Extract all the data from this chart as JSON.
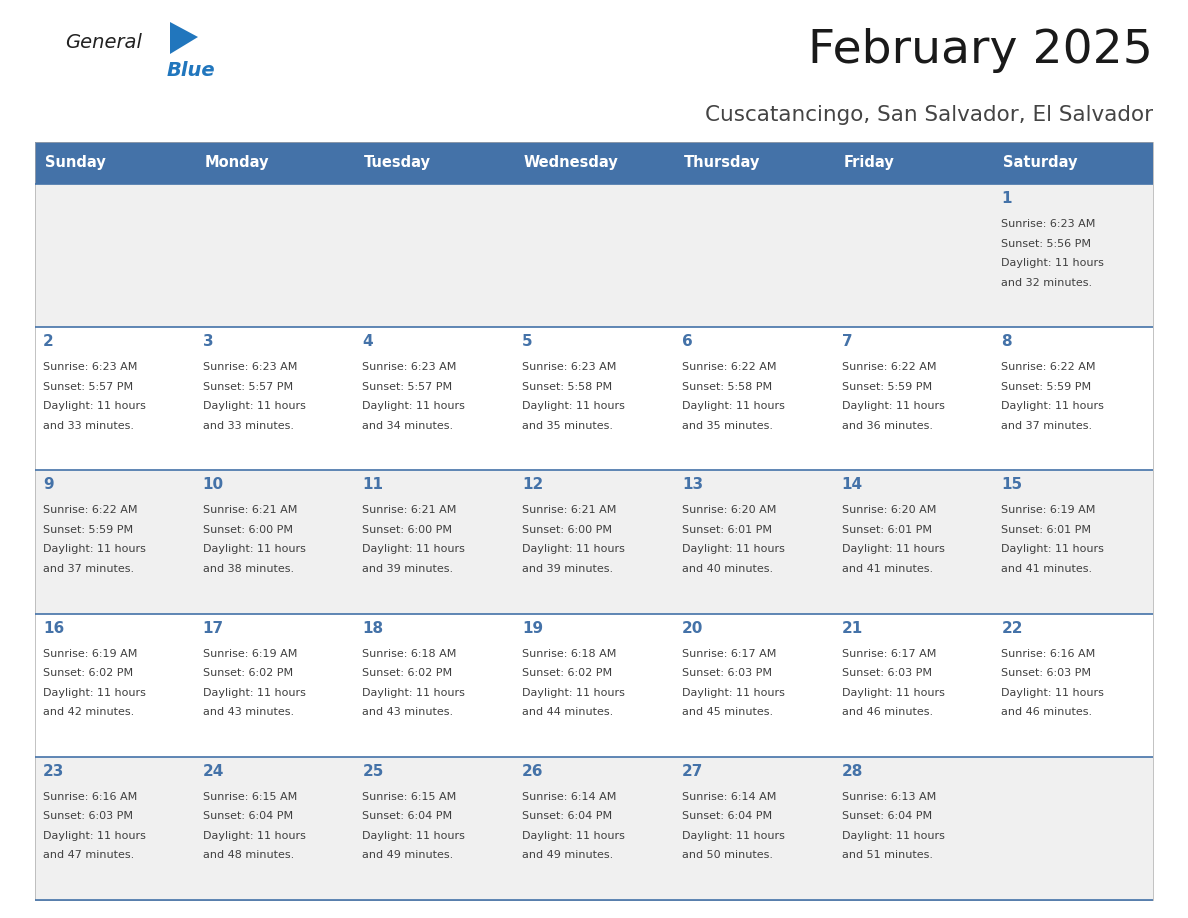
{
  "title": "February 2025",
  "subtitle": "Cuscatancingo, San Salvador, El Salvador",
  "days_of_week": [
    "Sunday",
    "Monday",
    "Tuesday",
    "Wednesday",
    "Thursday",
    "Friday",
    "Saturday"
  ],
  "header_bg": "#4472a8",
  "header_text": "#ffffff",
  "row_bg_odd": "#f0f0f0",
  "row_bg_even": "#ffffff",
  "border_color": "#4472a8",
  "day_number_color": "#4472a8",
  "text_color": "#404040",
  "calendar": [
    [
      null,
      null,
      null,
      null,
      null,
      null,
      {
        "day": 1,
        "sunrise": "6:23 AM",
        "sunset": "5:56 PM",
        "daylight": "11 hours",
        "daylight2": "and 32 minutes."
      }
    ],
    [
      {
        "day": 2,
        "sunrise": "6:23 AM",
        "sunset": "5:57 PM",
        "daylight": "11 hours",
        "daylight2": "and 33 minutes."
      },
      {
        "day": 3,
        "sunrise": "6:23 AM",
        "sunset": "5:57 PM",
        "daylight": "11 hours",
        "daylight2": "and 33 minutes."
      },
      {
        "day": 4,
        "sunrise": "6:23 AM",
        "sunset": "5:57 PM",
        "daylight": "11 hours",
        "daylight2": "and 34 minutes."
      },
      {
        "day": 5,
        "sunrise": "6:23 AM",
        "sunset": "5:58 PM",
        "daylight": "11 hours",
        "daylight2": "and 35 minutes."
      },
      {
        "day": 6,
        "sunrise": "6:22 AM",
        "sunset": "5:58 PM",
        "daylight": "11 hours",
        "daylight2": "and 35 minutes."
      },
      {
        "day": 7,
        "sunrise": "6:22 AM",
        "sunset": "5:59 PM",
        "daylight": "11 hours",
        "daylight2": "and 36 minutes."
      },
      {
        "day": 8,
        "sunrise": "6:22 AM",
        "sunset": "5:59 PM",
        "daylight": "11 hours",
        "daylight2": "and 37 minutes."
      }
    ],
    [
      {
        "day": 9,
        "sunrise": "6:22 AM",
        "sunset": "5:59 PM",
        "daylight": "11 hours",
        "daylight2": "and 37 minutes."
      },
      {
        "day": 10,
        "sunrise": "6:21 AM",
        "sunset": "6:00 PM",
        "daylight": "11 hours",
        "daylight2": "and 38 minutes."
      },
      {
        "day": 11,
        "sunrise": "6:21 AM",
        "sunset": "6:00 PM",
        "daylight": "11 hours",
        "daylight2": "and 39 minutes."
      },
      {
        "day": 12,
        "sunrise": "6:21 AM",
        "sunset": "6:00 PM",
        "daylight": "11 hours",
        "daylight2": "and 39 minutes."
      },
      {
        "day": 13,
        "sunrise": "6:20 AM",
        "sunset": "6:01 PM",
        "daylight": "11 hours",
        "daylight2": "and 40 minutes."
      },
      {
        "day": 14,
        "sunrise": "6:20 AM",
        "sunset": "6:01 PM",
        "daylight": "11 hours",
        "daylight2": "and 41 minutes."
      },
      {
        "day": 15,
        "sunrise": "6:19 AM",
        "sunset": "6:01 PM",
        "daylight": "11 hours",
        "daylight2": "and 41 minutes."
      }
    ],
    [
      {
        "day": 16,
        "sunrise": "6:19 AM",
        "sunset": "6:02 PM",
        "daylight": "11 hours",
        "daylight2": "and 42 minutes."
      },
      {
        "day": 17,
        "sunrise": "6:19 AM",
        "sunset": "6:02 PM",
        "daylight": "11 hours",
        "daylight2": "and 43 minutes."
      },
      {
        "day": 18,
        "sunrise": "6:18 AM",
        "sunset": "6:02 PM",
        "daylight": "11 hours",
        "daylight2": "and 43 minutes."
      },
      {
        "day": 19,
        "sunrise": "6:18 AM",
        "sunset": "6:02 PM",
        "daylight": "11 hours",
        "daylight2": "and 44 minutes."
      },
      {
        "day": 20,
        "sunrise": "6:17 AM",
        "sunset": "6:03 PM",
        "daylight": "11 hours",
        "daylight2": "and 45 minutes."
      },
      {
        "day": 21,
        "sunrise": "6:17 AM",
        "sunset": "6:03 PM",
        "daylight": "11 hours",
        "daylight2": "and 46 minutes."
      },
      {
        "day": 22,
        "sunrise": "6:16 AM",
        "sunset": "6:03 PM",
        "daylight": "11 hours",
        "daylight2": "and 46 minutes."
      }
    ],
    [
      {
        "day": 23,
        "sunrise": "6:16 AM",
        "sunset": "6:03 PM",
        "daylight": "11 hours",
        "daylight2": "and 47 minutes."
      },
      {
        "day": 24,
        "sunrise": "6:15 AM",
        "sunset": "6:04 PM",
        "daylight": "11 hours",
        "daylight2": "and 48 minutes."
      },
      {
        "day": 25,
        "sunrise": "6:15 AM",
        "sunset": "6:04 PM",
        "daylight": "11 hours",
        "daylight2": "and 49 minutes."
      },
      {
        "day": 26,
        "sunrise": "6:14 AM",
        "sunset": "6:04 PM",
        "daylight": "11 hours",
        "daylight2": "and 49 minutes."
      },
      {
        "day": 27,
        "sunrise": "6:14 AM",
        "sunset": "6:04 PM",
        "daylight": "11 hours",
        "daylight2": "and 50 minutes."
      },
      {
        "day": 28,
        "sunrise": "6:13 AM",
        "sunset": "6:04 PM",
        "daylight": "11 hours",
        "daylight2": "and 51 minutes."
      },
      null
    ]
  ],
  "logo_color1": "#222222",
  "logo_color2": "#2176bd",
  "logo_tri_color": "#2176bd"
}
